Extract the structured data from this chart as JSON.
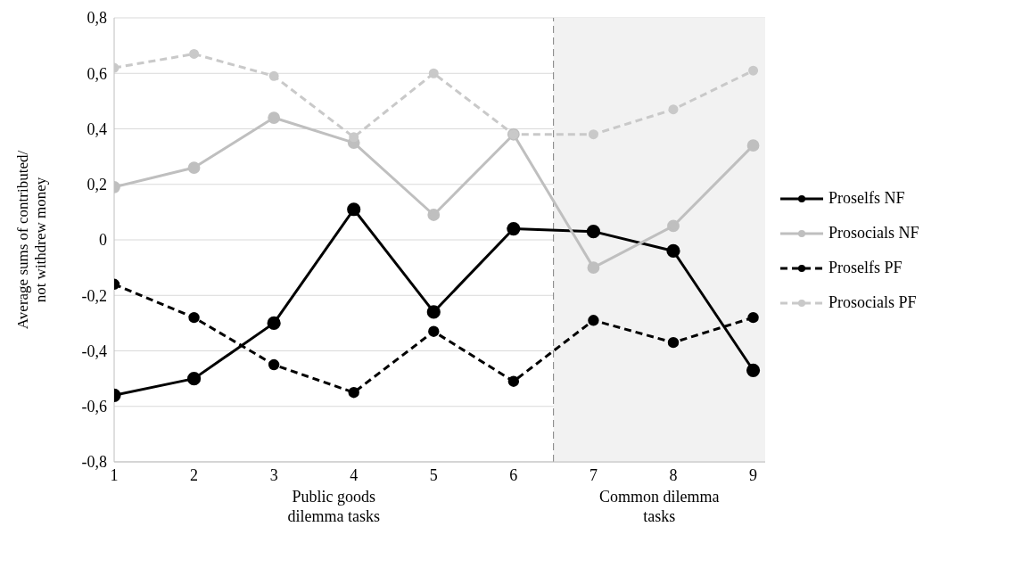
{
  "chart_data": {
    "type": "line",
    "ylabel": "Average sums of contributed/ not withdrew money",
    "x": [
      1,
      2,
      3,
      4,
      5,
      6,
      7,
      8,
      9
    ],
    "xlim": [
      1,
      9.15
    ],
    "xticks": [
      1,
      2,
      3,
      4,
      5,
      6,
      7,
      8,
      9
    ],
    "ylim": [
      -0.8,
      0.8
    ],
    "yticks": [
      {
        "value": -0.8,
        "label": "-0,8"
      },
      {
        "value": -0.6,
        "label": "-0,6"
      },
      {
        "value": -0.4,
        "label": "-0,4"
      },
      {
        "value": -0.2,
        "label": "-0,2"
      },
      0,
      {
        "value": 0.2,
        "label": "0,2"
      },
      {
        "value": 0.4,
        "label": "0,4"
      },
      {
        "value": 0.6,
        "label": "0,6"
      },
      {
        "value": 0.8,
        "label": "0,8"
      }
    ],
    "grid": "y",
    "legend": "right",
    "marker": "circle",
    "series": [
      {
        "name": "Proselfs NF",
        "color": "#000000",
        "line_style": "solid",
        "values": [
          -0.56,
          -0.5,
          -0.3,
          0.11,
          -0.26,
          0.04,
          0.03,
          -0.04,
          -0.47
        ]
      },
      {
        "name": "Prosocials NF",
        "color": "#bfbfbf",
        "line_style": "solid",
        "values": [
          0.19,
          0.26,
          0.44,
          0.35,
          0.09,
          0.38,
          -0.1,
          0.05,
          0.34
        ]
      },
      {
        "name": "Proselfs PF",
        "color": "#000000",
        "line_style": "dashed",
        "values": [
          -0.16,
          -0.28,
          -0.45,
          -0.55,
          -0.33,
          -0.51,
          -0.29,
          -0.37,
          -0.28
        ]
      },
      {
        "name": "Prosocials PF",
        "color": "#c9c9c9",
        "line_style": "dashed",
        "values": [
          0.62,
          0.67,
          0.59,
          0.37,
          0.6,
          0.38,
          0.38,
          0.47,
          0.61
        ]
      }
    ],
    "bands": [
      {
        "axis": "x",
        "from": 6.5,
        "to": 9.15,
        "color": "#f2f2f2"
      }
    ],
    "ref_lines": [
      {
        "axis": "x",
        "value": 6.5,
        "color": "#808080",
        "line_style": "dashed"
      }
    ],
    "annotations": [
      "Public goods dilemma tasks",
      "Common dilemma tasks"
    ]
  }
}
